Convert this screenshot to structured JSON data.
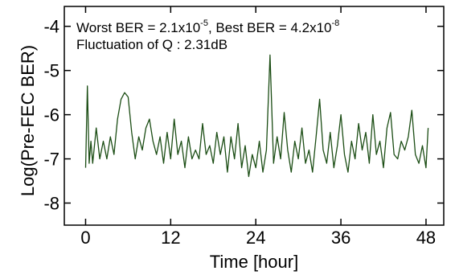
{
  "chart_data": {
    "type": "line",
    "title": "",
    "xlabel": "Time [hour]",
    "ylabel": "Log(Pre-FEC BER)",
    "xlim": [
      -3,
      50.5
    ],
    "ylim": [
      -8.5,
      -3.55
    ],
    "xticks": [
      0,
      12,
      24,
      36,
      48
    ],
    "xtick_labels": [
      "0",
      "12",
      "24",
      "36",
      "48"
    ],
    "yticks": [
      -4,
      -5,
      -6,
      -7,
      -8
    ],
    "ytick_labels": [
      "-4",
      "-5",
      "-6",
      "-7",
      "-8"
    ],
    "grid": false,
    "legend": "none",
    "annotations": {
      "line1": {
        "worst_prefix": "Worst BER = 2.1x10",
        "worst_exp": "-5",
        "best_prefix": ", Best BER = 4.2x10",
        "best_exp": "-8"
      },
      "line2": "Fluctuation of Q : 2.31dB"
    },
    "series": [
      {
        "color": "#1b4d14",
        "x": [
          0.0,
          0.25,
          0.5,
          0.75,
          1.0,
          1.5,
          2.0,
          2.5,
          3.0,
          3.5,
          4.0,
          4.5,
          5.0,
          5.5,
          6.0,
          6.5,
          7.0,
          7.5,
          8.0,
          8.5,
          9.0,
          9.5,
          10.0,
          10.5,
          11.0,
          11.5,
          12.0,
          12.5,
          13.0,
          13.5,
          14.0,
          14.5,
          15.0,
          15.5,
          16.0,
          16.5,
          17.0,
          17.5,
          18.0,
          18.5,
          19.0,
          19.5,
          20.0,
          20.5,
          21.0,
          21.5,
          22.0,
          22.5,
          23.0,
          23.5,
          24.0,
          24.5,
          25.0,
          25.5,
          26.0,
          26.5,
          27.0,
          27.5,
          28.0,
          28.5,
          29.0,
          29.5,
          30.0,
          30.5,
          31.0,
          31.5,
          32.0,
          32.5,
          33.0,
          33.5,
          34.0,
          34.5,
          35.0,
          35.5,
          36.0,
          36.5,
          37.0,
          37.5,
          38.0,
          38.5,
          39.0,
          39.5,
          40.0,
          40.5,
          41.0,
          41.5,
          42.0,
          42.5,
          43.0,
          43.5,
          44.0,
          44.5,
          45.0,
          45.5,
          46.0,
          46.5,
          47.0,
          47.5,
          48.0,
          48.3
        ],
        "y": [
          -7.2,
          -5.35,
          -7.1,
          -6.6,
          -7.1,
          -6.3,
          -7.0,
          -6.6,
          -7.0,
          -6.5,
          -6.9,
          -6.1,
          -5.65,
          -5.5,
          -5.6,
          -6.4,
          -7.0,
          -6.5,
          -6.8,
          -6.3,
          -6.1,
          -6.6,
          -6.9,
          -6.5,
          -7.1,
          -6.4,
          -7.0,
          -6.1,
          -6.9,
          -6.6,
          -7.2,
          -6.5,
          -7.0,
          -6.8,
          -7.0,
          -6.2,
          -6.9,
          -6.7,
          -7.1,
          -6.4,
          -6.9,
          -6.5,
          -7.3,
          -6.5,
          -7.0,
          -6.2,
          -7.2,
          -6.7,
          -7.4,
          -6.9,
          -7.2,
          -6.6,
          -7.3,
          -6.8,
          -4.65,
          -7.1,
          -6.5,
          -7.0,
          -5.95,
          -6.8,
          -7.3,
          -6.6,
          -7.0,
          -6.3,
          -7.1,
          -6.8,
          -7.3,
          -6.5,
          -5.65,
          -6.8,
          -7.1,
          -6.4,
          -7.2,
          -6.7,
          -6.0,
          -6.9,
          -7.3,
          -6.6,
          -7.0,
          -6.2,
          -6.8,
          -6.4,
          -7.1,
          -6.0,
          -6.9,
          -6.6,
          -7.2,
          -6.3,
          -5.95,
          -6.9,
          -7.0,
          -6.6,
          -6.8,
          -6.5,
          -5.9,
          -6.9,
          -7.1,
          -6.7,
          -7.2,
          -6.3
        ]
      }
    ]
  }
}
